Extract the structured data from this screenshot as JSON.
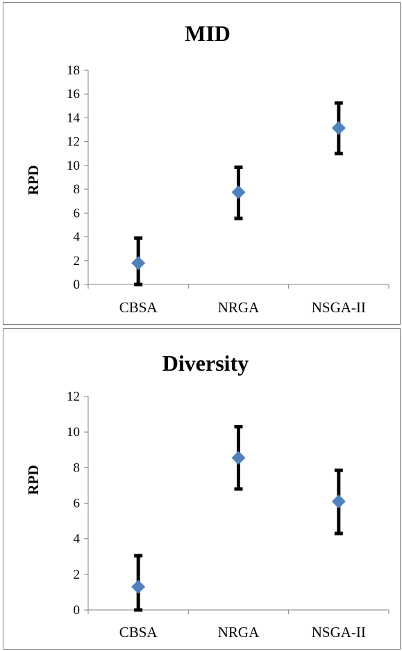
{
  "chart_data": [
    {
      "type": "scatter",
      "title": "MID",
      "xlabel": "",
      "ylabel": "RPD",
      "categories": [
        "CBSA",
        "NRGA",
        "NSGA-II"
      ],
      "values": [
        1.8,
        7.75,
        13.15
      ],
      "error_low": [
        0,
        5.55,
        11.0
      ],
      "error_high": [
        3.9,
        9.85,
        15.25
      ],
      "ylim": [
        0,
        18
      ],
      "yticks": [
        0,
        2,
        4,
        6,
        8,
        10,
        12,
        14,
        16,
        18
      ],
      "grid": false,
      "legend": "none",
      "marker_color": "#4f81bd",
      "errorbar_color": "#000000"
    },
    {
      "type": "scatter",
      "title": "Diversity",
      "xlabel": "",
      "ylabel": "RPD",
      "categories": [
        "CBSA",
        "NRGA",
        "NSGA-II"
      ],
      "values": [
        1.3,
        8.55,
        6.1
      ],
      "error_low": [
        0,
        6.8,
        4.3
      ],
      "error_high": [
        3.05,
        10.3,
        7.85
      ],
      "ylim": [
        0,
        12
      ],
      "yticks": [
        0,
        2,
        4,
        6,
        8,
        10,
        12
      ],
      "grid": false,
      "legend": "none",
      "marker_color": "#4f81bd",
      "errorbar_color": "#000000"
    }
  ]
}
